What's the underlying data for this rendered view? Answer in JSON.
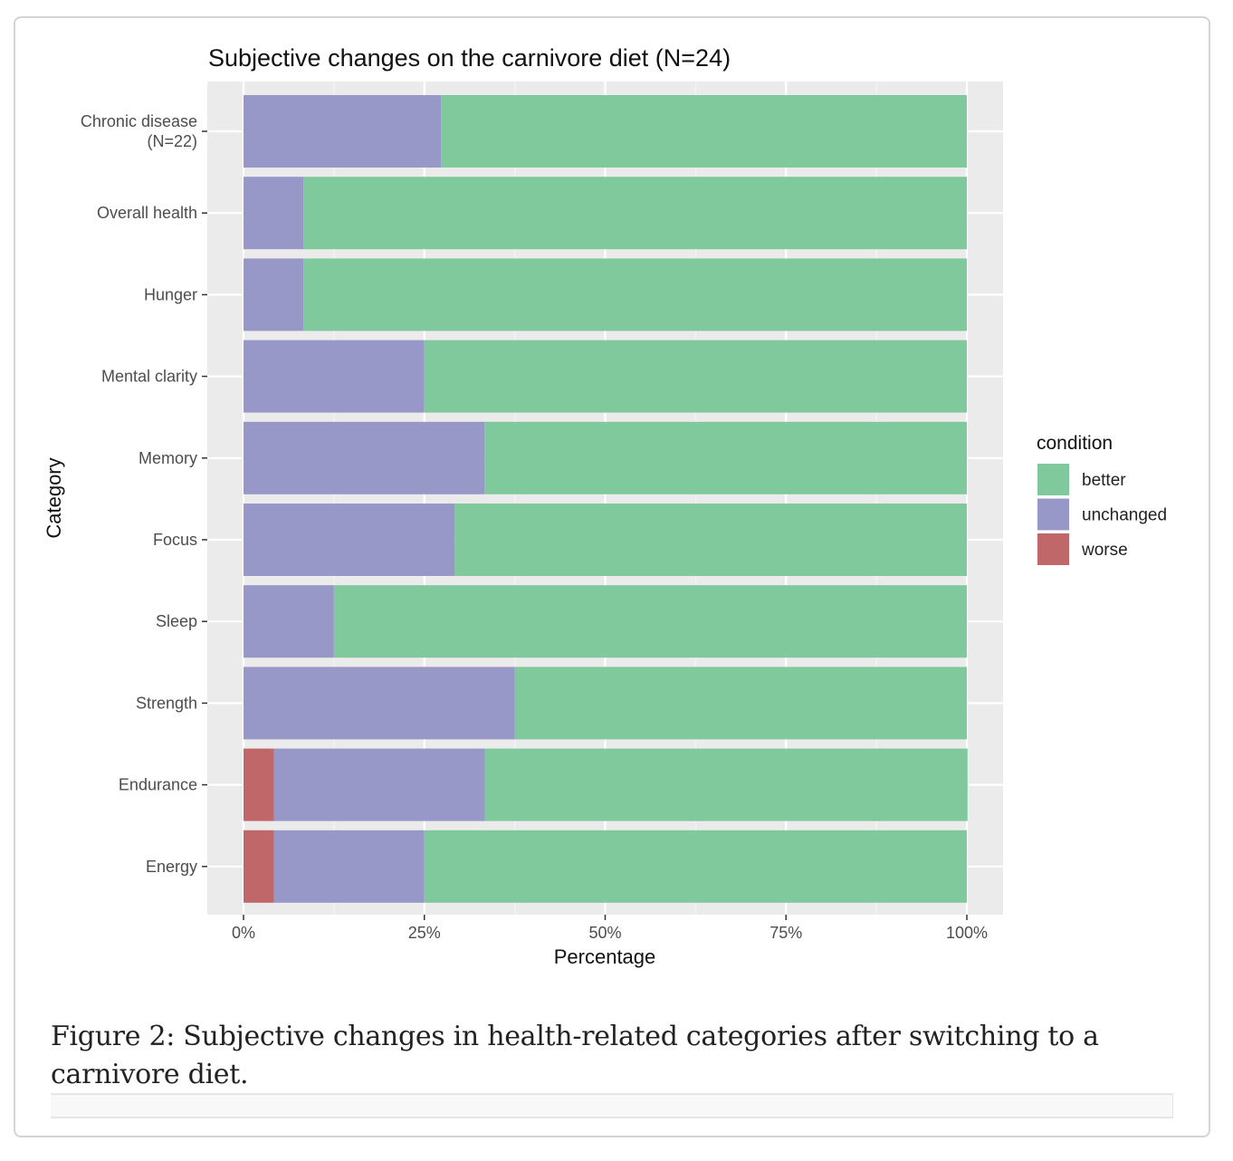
{
  "figure": {
    "caption": "Figure 2: Subjective changes in health-related categories after switching to a carnivore diet."
  },
  "chart_data": {
    "type": "bar",
    "orientation": "horizontal",
    "stacked": true,
    "title": "Subjective changes on the carnivore diet (N=24)",
    "xlabel": "Percentage",
    "ylabel": "Category",
    "xlim": [
      0,
      100
    ],
    "x_ticks": [
      0,
      25,
      50,
      75,
      100
    ],
    "x_tick_labels": [
      "0%",
      "25%",
      "50%",
      "75%",
      "100%"
    ],
    "grid": true,
    "categories": [
      "Chronic disease\n(N=22)",
      "Overall health",
      "Hunger",
      "Mental clarity",
      "Memory",
      "Focus",
      "Sleep",
      "Strength",
      "Endurance",
      "Energy"
    ],
    "series": [
      {
        "name": "worse",
        "color": "#c0676a",
        "values": [
          0,
          0,
          0,
          0,
          0,
          0,
          0,
          0,
          4.2,
          4.2
        ]
      },
      {
        "name": "unchanged",
        "color": "#9898c8",
        "values": [
          27.3,
          8.3,
          8.3,
          25.0,
          33.3,
          29.2,
          12.5,
          37.5,
          29.2,
          20.8
        ]
      },
      {
        "name": "better",
        "color": "#80c99c",
        "values": [
          72.7,
          91.7,
          91.7,
          75.0,
          66.7,
          70.8,
          87.5,
          62.5,
          66.7,
          75.0
        ]
      }
    ],
    "legend": {
      "title": "condition",
      "position": "right",
      "entries": [
        {
          "label": "better",
          "color": "#80c99c"
        },
        {
          "label": "unchanged",
          "color": "#9898c8"
        },
        {
          "label": "worse",
          "color": "#c0676a"
        }
      ]
    }
  }
}
